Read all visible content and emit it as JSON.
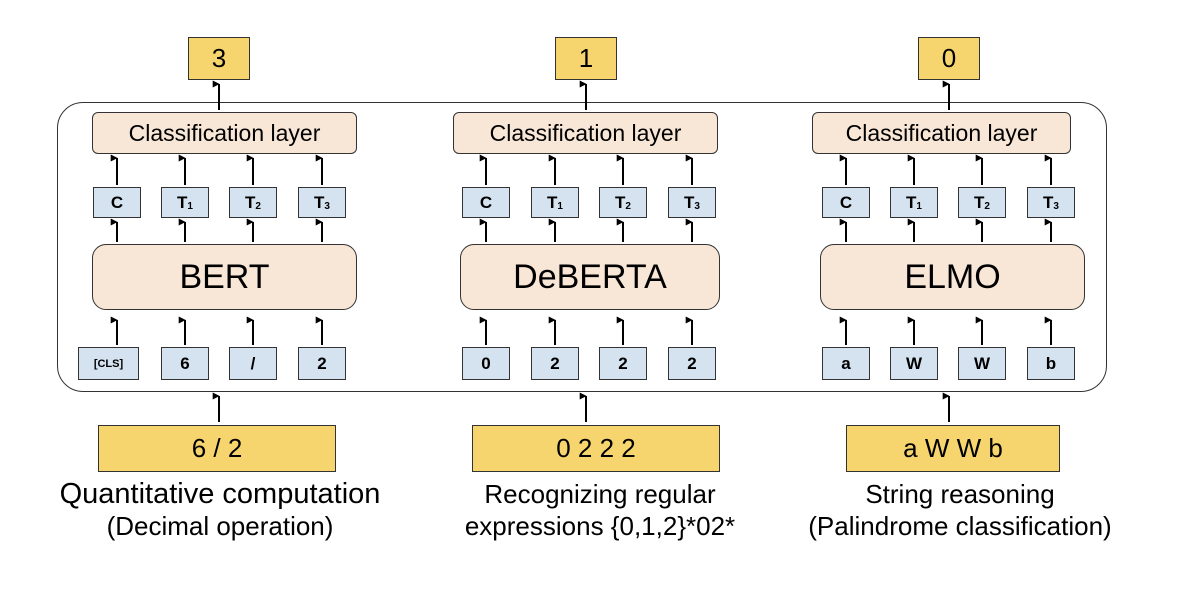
{
  "panels": [
    {
      "output": "3",
      "classification_label": "Classification layer",
      "model": "BERT",
      "hidden_tokens": [
        {
          "base": "C",
          "sub": ""
        },
        {
          "base": "T",
          "sub": "1"
        },
        {
          "base": "T",
          "sub": "2"
        },
        {
          "base": "T",
          "sub": "3"
        }
      ],
      "input_tokens": [
        "[CLS]",
        "6",
        "/",
        "2"
      ],
      "input_string": "6 / 2",
      "caption_line1": "Quantitative computation",
      "caption_line2": "(Decimal operation)"
    },
    {
      "output": "1",
      "classification_label": "Classification layer",
      "model": "DeBERTA",
      "hidden_tokens": [
        {
          "base": "C",
          "sub": ""
        },
        {
          "base": "T",
          "sub": "1"
        },
        {
          "base": "T",
          "sub": "2"
        },
        {
          "base": "T",
          "sub": "3"
        }
      ],
      "input_tokens": [
        "0",
        "2",
        "2",
        "2"
      ],
      "input_string": "0 2 2 2",
      "caption_line1": "Recognizing regular",
      "caption_line2": "expressions  {0,1,2}*02*"
    },
    {
      "output": "0",
      "classification_label": "Classification layer",
      "model": "ELMO",
      "hidden_tokens": [
        {
          "base": "C",
          "sub": ""
        },
        {
          "base": "T",
          "sub": "1"
        },
        {
          "base": "T",
          "sub": "2"
        },
        {
          "base": "T",
          "sub": "3"
        }
      ],
      "input_tokens": [
        "a",
        "W",
        "W",
        "b"
      ],
      "input_string": "a W W b",
      "caption_line1": "String reasoning",
      "caption_line2": "(Palindrome classification)"
    }
  ],
  "colors": {
    "output_box": "#f7d56e",
    "layer_box": "#f8e6d6",
    "token_box": "#d5e2ef",
    "stroke": "#333333"
  }
}
